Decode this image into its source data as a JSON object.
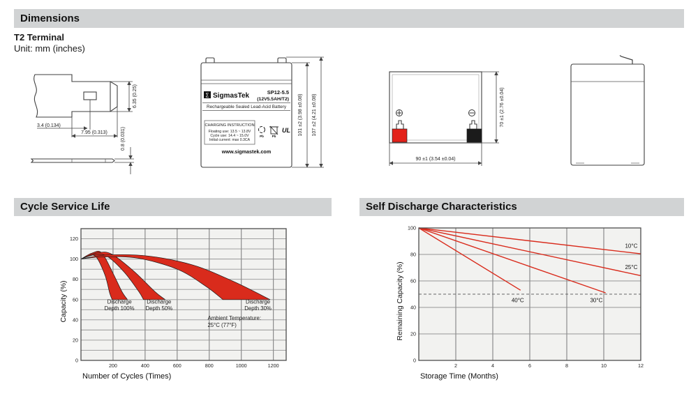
{
  "page": {
    "section_dimensions_title": "Dimensions",
    "section_cycle_title": "Cycle Service Life",
    "section_self_title": "Self Discharge Characteristics",
    "terminal_heading": "T2 Terminal",
    "unit_note": "Unit: mm (inches)",
    "header_bar_color": "#d1d3d4",
    "accent_red": "#d92b1c"
  },
  "drawings": {
    "terminal_detail": {
      "dim_offset": "3.4 (0.134)",
      "dim_tab_width": "7.95 (0.313)",
      "dim_tab_height": "6.35 (0.25)",
      "dim_thickness": "0.8 (0.031)"
    },
    "front_view": {
      "logo_sigma": "Σ",
      "brand": "SigmasTek",
      "model": "SP12-5.5",
      "spec": "(12V5.5AH/T2)",
      "type_line": "Rechargeable Sealed Lead-Acid Battery",
      "charging_title": "CHARGING INSTRUCTION",
      "charging_line1": "Floating use: 13.5 ~ 13.8V",
      "charging_line2": "Cycle use: 14.4 ~ 15.0V",
      "charging_line3": "Initial current: max 0.3CA",
      "website": "www.sigmastek.com",
      "pb_recycle_label": "Pb",
      "pb_trash_label": "Pb",
      "ul_label": "UL",
      "dim_case_height": "101 ±2 (3.98 ±0.08)",
      "dim_total_height": "107 ±2 (4.21 ±0.08)"
    },
    "top_view": {
      "dim_width": "90 ±1 (3.54 ±0.04)",
      "dim_depth": "70 ±1 (2.76 ±0.04)"
    }
  },
  "chart_data": [
    {
      "id": "cycle_service_life",
      "type": "area",
      "title": "Cycle Service Life",
      "xlabel": "Number of Cycles (Times)",
      "ylabel": "Capacity (%)",
      "xlim": [
        0,
        1280
      ],
      "ylim": [
        0,
        130
      ],
      "x_ticks": [
        200,
        400,
        600,
        800,
        1000,
        1200
      ],
      "y_ticks": [
        0,
        20,
        40,
        60,
        80,
        100,
        120
      ],
      "x_grid_step": 200,
      "y_grid_step": 10,
      "grid": true,
      "band_color": "#d92b1c",
      "bands": [
        {
          "name": "Discharge Depth 100%",
          "upper": [
            [
              0,
              100
            ],
            [
              70,
              106
            ],
            [
              130,
              106
            ],
            [
              200,
              86
            ],
            [
              255,
              68
            ],
            [
              290,
              60
            ]
          ],
          "lower": [
            [
              0,
              100
            ],
            [
              50,
              103
            ],
            [
              95,
              102
            ],
            [
              150,
              84
            ],
            [
              180,
              66
            ],
            [
              195,
              60
            ]
          ],
          "label_lines": [
            "Discharge",
            "Depth 100%"
          ],
          "label_pos": [
            240,
            56
          ]
        },
        {
          "name": "Discharge Depth 50%",
          "upper": [
            [
              0,
              100
            ],
            [
              100,
              106
            ],
            [
              190,
              105
            ],
            [
              330,
              88
            ],
            [
              460,
              68
            ],
            [
              525,
              60
            ]
          ],
          "lower": [
            [
              0,
              100
            ],
            [
              80,
              104
            ],
            [
              160,
              103
            ],
            [
              270,
              87
            ],
            [
              360,
              68
            ],
            [
              390,
              60
            ]
          ],
          "label_lines": [
            "Discharge",
            "Depth 50%"
          ],
          "label_pos": [
            487,
            56
          ]
        },
        {
          "name": "Discharge Depth 30%",
          "upper": [
            [
              0,
              100
            ],
            [
              160,
              104
            ],
            [
              420,
              103
            ],
            [
              700,
              94
            ],
            [
              950,
              78
            ],
            [
              1180,
              60
            ]
          ],
          "lower": [
            [
              0,
              100
            ],
            [
              130,
              102
            ],
            [
              350,
              101
            ],
            [
              600,
              90
            ],
            [
              780,
              73
            ],
            [
              885,
              60
            ]
          ],
          "label_lines": [
            "Discharge",
            "Depth 30%"
          ],
          "label_pos": [
            1104,
            56
          ]
        }
      ],
      "annotation": {
        "lines": [
          "Ambient Temperature:",
          "25°C (77°F)"
        ],
        "pos": [
          790,
          40
        ]
      }
    },
    {
      "id": "self_discharge",
      "type": "line",
      "title": "Self Discharge Characteristics",
      "xlabel": "Storage Time (Months)",
      "ylabel": "Remaining Capacity (%)",
      "xlim": [
        0,
        12
      ],
      "ylim": [
        0,
        100
      ],
      "x_ticks": [
        2,
        4,
        6,
        8,
        10,
        12
      ],
      "y_ticks": [
        0,
        20,
        40,
        60,
        80,
        100
      ],
      "x_grid_step": 2,
      "y_grid_step": 20,
      "grid": true,
      "line_color": "#d92b1c",
      "dashed_y": 50,
      "series": [
        {
          "name": "10°C",
          "points": [
            [
              0,
              100
            ],
            [
              12,
              80.5
            ]
          ],
          "label_pos": [
            11.15,
            85
          ],
          "label_anchor": "start"
        },
        {
          "name": "25°C",
          "points": [
            [
              0,
              100
            ],
            [
              12,
              64
            ]
          ],
          "label_pos": [
            11.15,
            69
          ],
          "label_anchor": "start"
        },
        {
          "name": "30°C",
          "points": [
            [
              0,
              100
            ],
            [
              10.1,
              51
            ]
          ],
          "label_pos": [
            9.6,
            44
          ],
          "label_anchor": "middle"
        },
        {
          "name": "40°C",
          "points": [
            [
              0,
              100
            ],
            [
              5.5,
              53
            ]
          ],
          "label_pos": [
            5.35,
            44
          ],
          "label_anchor": "middle"
        }
      ]
    }
  ]
}
